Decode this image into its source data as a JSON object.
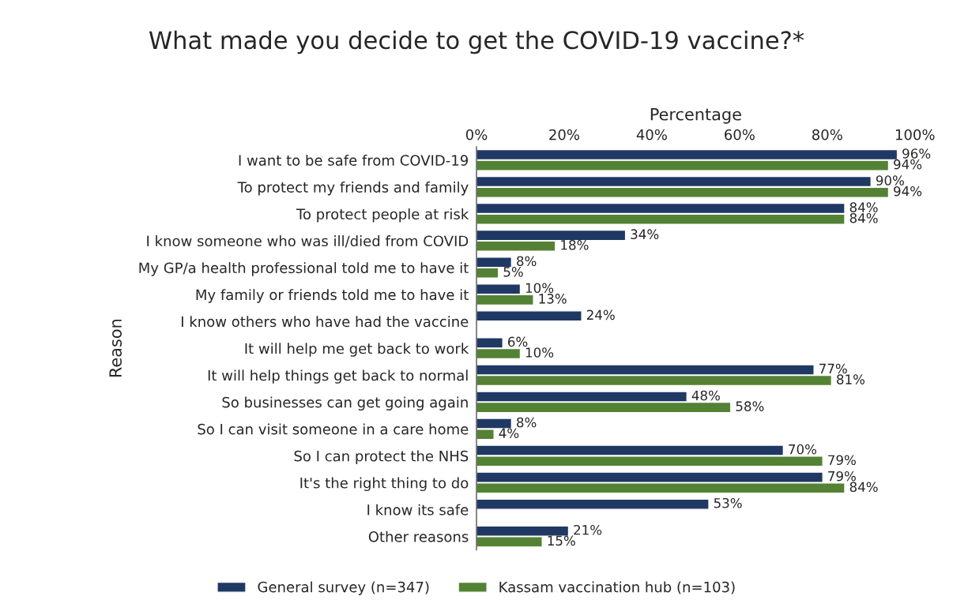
{
  "chart_data": {
    "type": "bar",
    "orientation": "horizontal",
    "title": "What made you decide to get the COVID-19 vaccine?*",
    "xlabel": "Percentage",
    "ylabel": "Reason",
    "categories": [
      "I want to be safe from COVID-19",
      "To protect my friends and family",
      "To protect people at risk",
      "I know someone who was ill/died from COVID",
      "My GP/a health professional told me to have it",
      "My family or friends told me to have it",
      "I know others who have had the vaccine",
      "It will help me get back to work",
      "It will help things get back to normal",
      "So businesses can get going again",
      "So I can visit someone in a care home",
      "So I can protect the NHS",
      "It's the right thing to do",
      "I know its safe",
      "Other reasons"
    ],
    "series": [
      {
        "name": "General survey (n=347)",
        "color": "#203864",
        "values": [
          96,
          90,
          84,
          34,
          8,
          10,
          24,
          6,
          77,
          48,
          8,
          70,
          79,
          53,
          21
        ],
        "value_labels": [
          "96%",
          "90%",
          "84%",
          "34%",
          "8%",
          "10%",
          "24%",
          "6%",
          "77%",
          "48%",
          "8%",
          "70%",
          "79%",
          "53%",
          "21%"
        ]
      },
      {
        "name": "Kassam vaccination hub (n=103)",
        "color": "#548235",
        "values": [
          94,
          94,
          84,
          18,
          5,
          13,
          null,
          10,
          81,
          58,
          4,
          79,
          84,
          null,
          15
        ],
        "value_labels": [
          "94%",
          "94%",
          "84%",
          "18%",
          "5%",
          "13%",
          null,
          "10%",
          "81%",
          "58%",
          "4%",
          "79%",
          "84%",
          null,
          "15%"
        ]
      }
    ],
    "xlim": [
      0,
      100
    ],
    "xticks": [
      {
        "value": 0,
        "label": "0%"
      },
      {
        "value": 20,
        "label": "20%"
      },
      {
        "value": 40,
        "label": "40%"
      },
      {
        "value": 60,
        "label": "60%"
      },
      {
        "value": 80,
        "label": "80%"
      },
      {
        "value": 100,
        "label": "100%"
      }
    ],
    "legend": "bottom",
    "grid": false
  }
}
